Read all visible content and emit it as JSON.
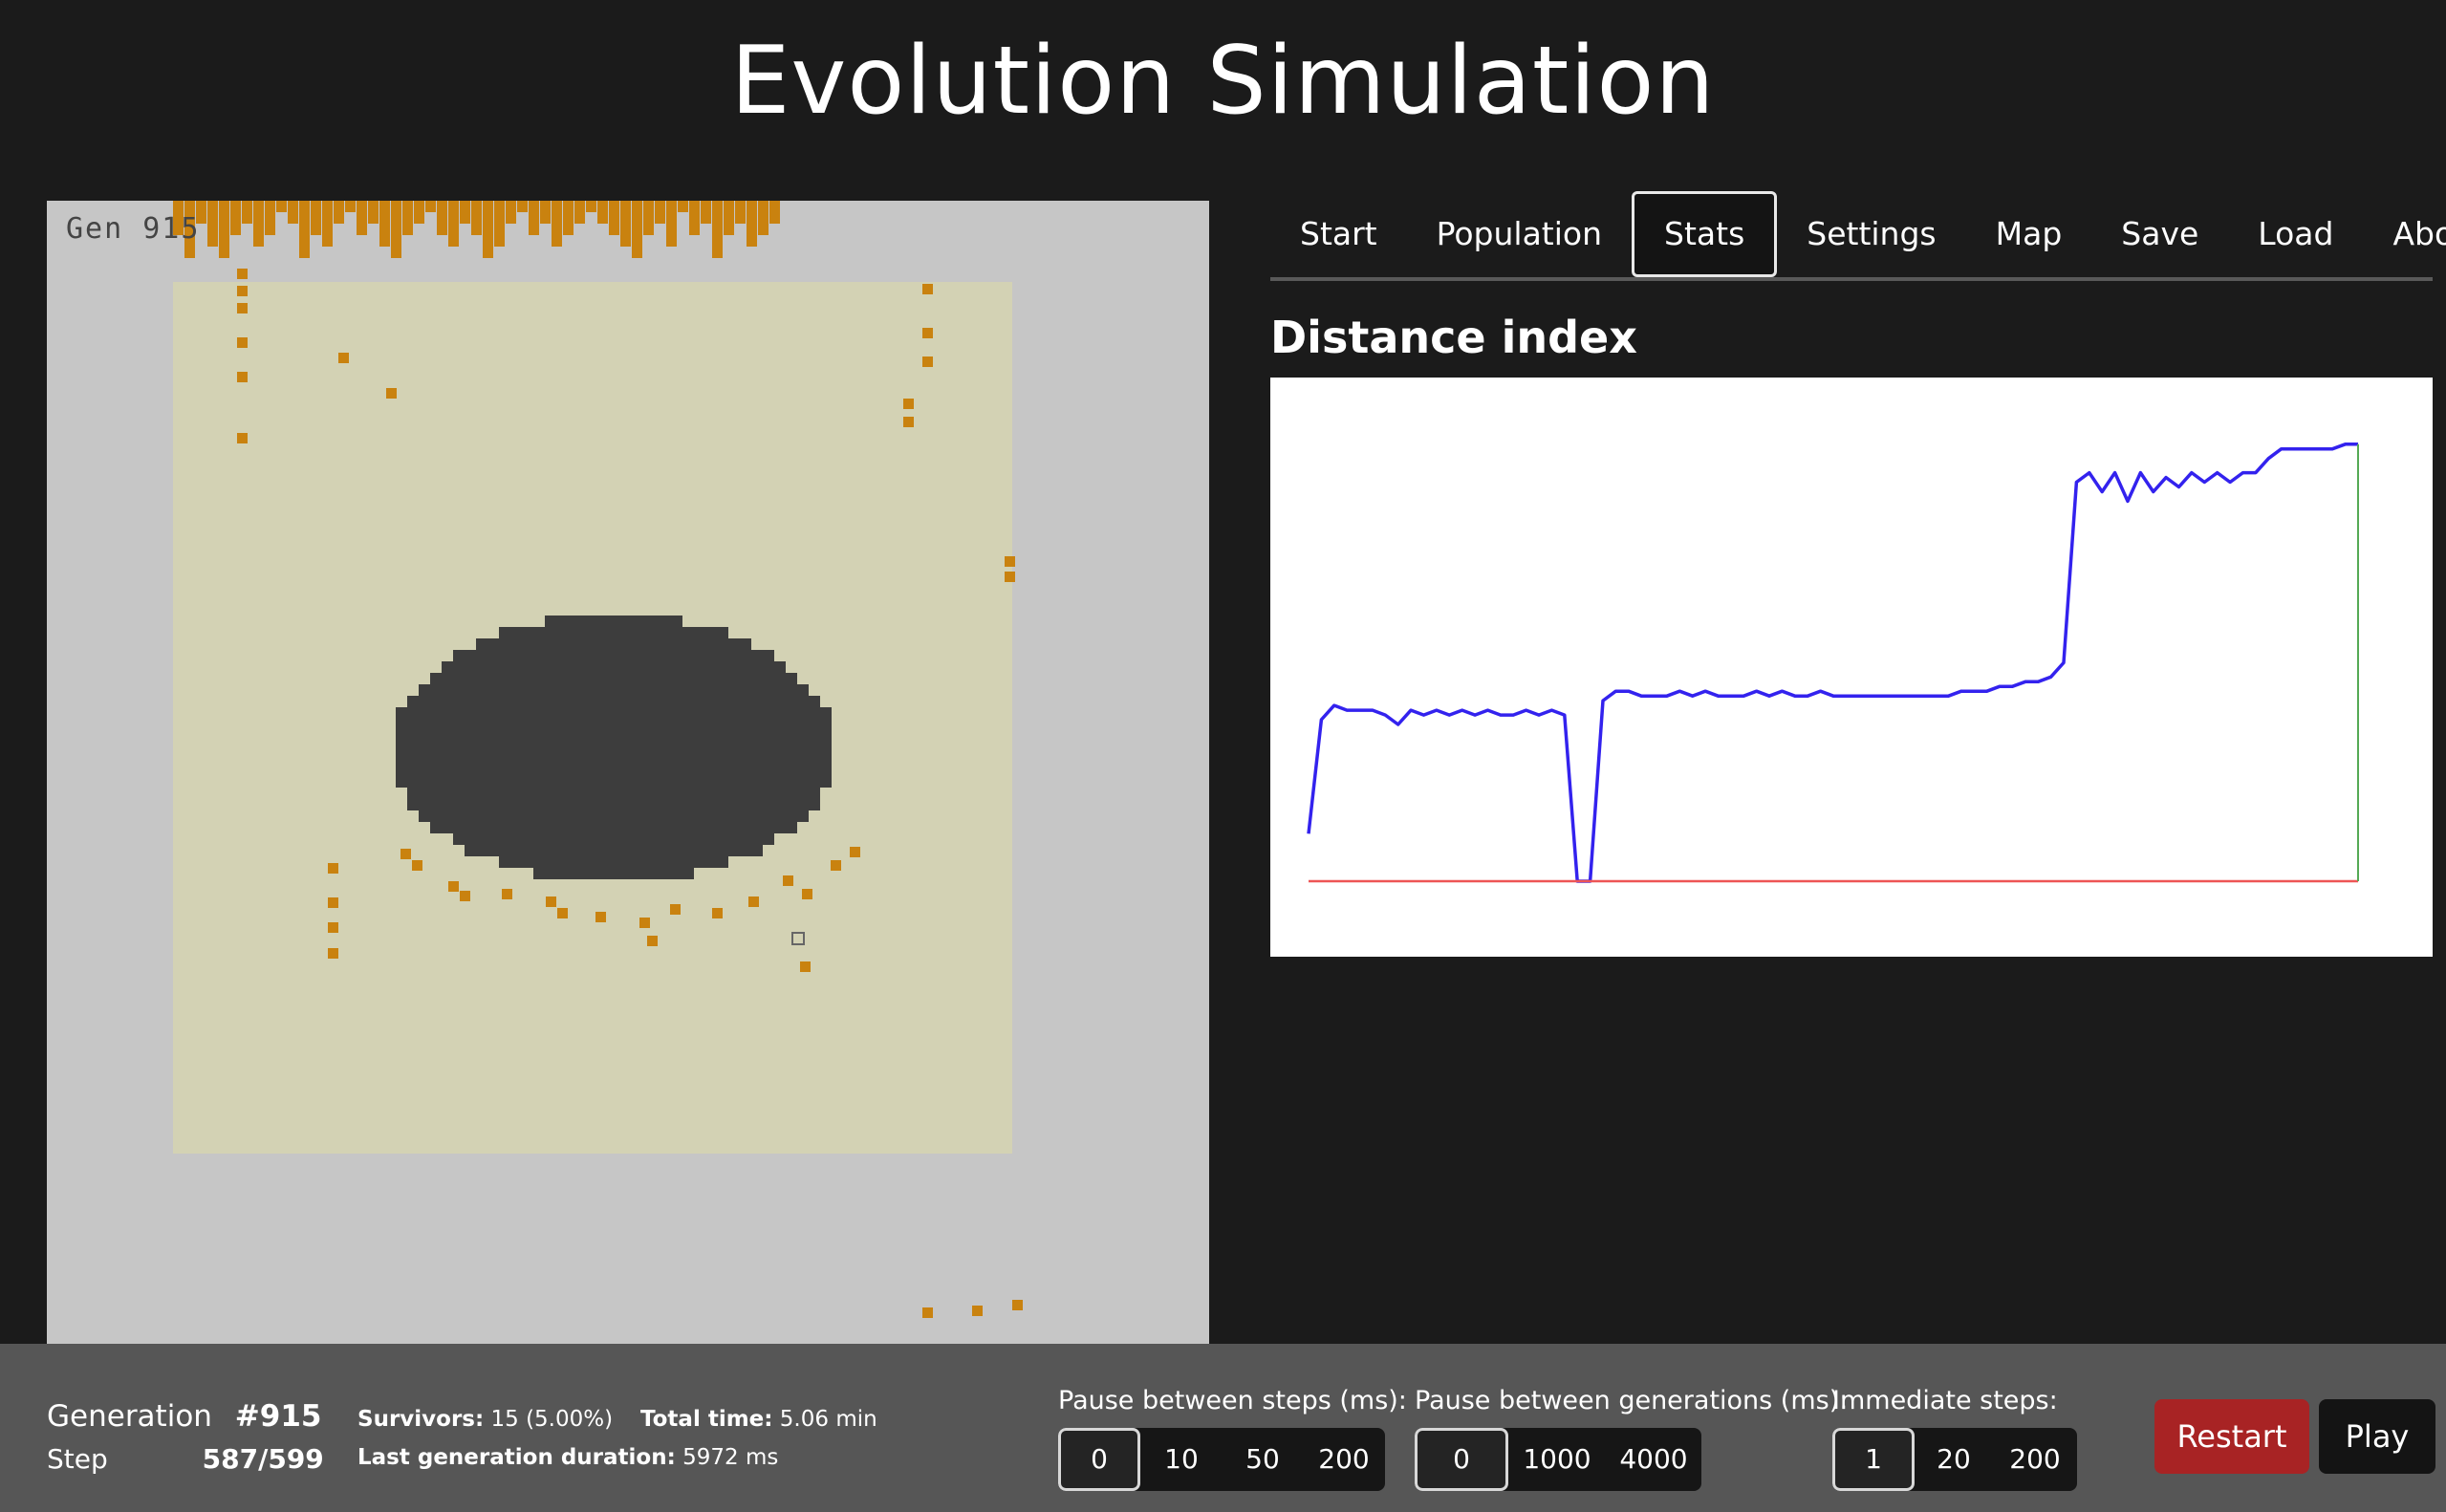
{
  "title": "Evolution Simulation",
  "world": {
    "gen_label": "Gen 915",
    "colors": {
      "background": "#c6c6c6",
      "safe_zone": "#d3d2b4",
      "obstacle": "#3d3d3d",
      "creature": "#c9820f"
    }
  },
  "tabs": [
    "Start",
    "Population",
    "Stats",
    "Settings",
    "Map",
    "Save",
    "Load",
    "About"
  ],
  "active_tab": "Stats",
  "section_title": "Distance index",
  "chart_data": {
    "type": "line",
    "title": "",
    "xlabel": "",
    "ylabel": "",
    "series": [
      {
        "color": "#3322ee",
        "values": [
          0.1,
          0.34,
          0.37,
          0.36,
          0.36,
          0.36,
          0.35,
          0.33,
          0.36,
          0.35,
          0.36,
          0.35,
          0.36,
          0.35,
          0.36,
          0.35,
          0.35,
          0.36,
          0.35,
          0.36,
          0.35,
          0.0,
          0.0,
          0.38,
          0.4,
          0.4,
          0.39,
          0.39,
          0.39,
          0.4,
          0.39,
          0.4,
          0.39,
          0.39,
          0.39,
          0.4,
          0.39,
          0.4,
          0.39,
          0.39,
          0.4,
          0.39,
          0.39,
          0.39,
          0.39,
          0.39,
          0.39,
          0.39,
          0.39,
          0.39,
          0.39,
          0.4,
          0.4,
          0.4,
          0.41,
          0.41,
          0.42,
          0.42,
          0.43,
          0.46,
          0.84,
          0.86,
          0.82,
          0.86,
          0.8,
          0.86,
          0.82,
          0.85,
          0.83,
          0.86,
          0.84,
          0.86,
          0.84,
          0.86,
          0.86,
          0.89,
          0.91,
          0.91,
          0.91,
          0.91,
          0.91,
          0.92,
          0.92
        ]
      },
      {
        "color": "#ee5555",
        "values": [
          0,
          0
        ]
      }
    ],
    "ylim": [
      0,
      1
    ],
    "grid": false,
    "legend": "none"
  },
  "bottom": {
    "generation_label": "Generation",
    "generation_value": "#915",
    "step_label": "Step",
    "step_value": "587/599",
    "survivors_label": "Survivors:",
    "survivors_value": "15 (5.00%)",
    "total_time_label": "Total time:",
    "total_time_value": "5.06 min",
    "last_gen_label": "Last generation duration:",
    "last_gen_value": "5972 ms",
    "pause_steps_label": "Pause between steps (ms):",
    "pause_steps_options": [
      "0",
      "10",
      "50",
      "200"
    ],
    "pause_steps_selected": "0",
    "pause_gen_label": "Pause between generations (ms):",
    "pause_gen_options": [
      "0",
      "1000",
      "4000"
    ],
    "pause_gen_selected": "0",
    "immediate_label": "Immediate steps:",
    "immediate_options": [
      "1",
      "20",
      "200"
    ],
    "immediate_selected": "1",
    "restart_label": "Restart",
    "play_label": "Play",
    "restart_color": "#a82324",
    "play_color": "#141414"
  }
}
